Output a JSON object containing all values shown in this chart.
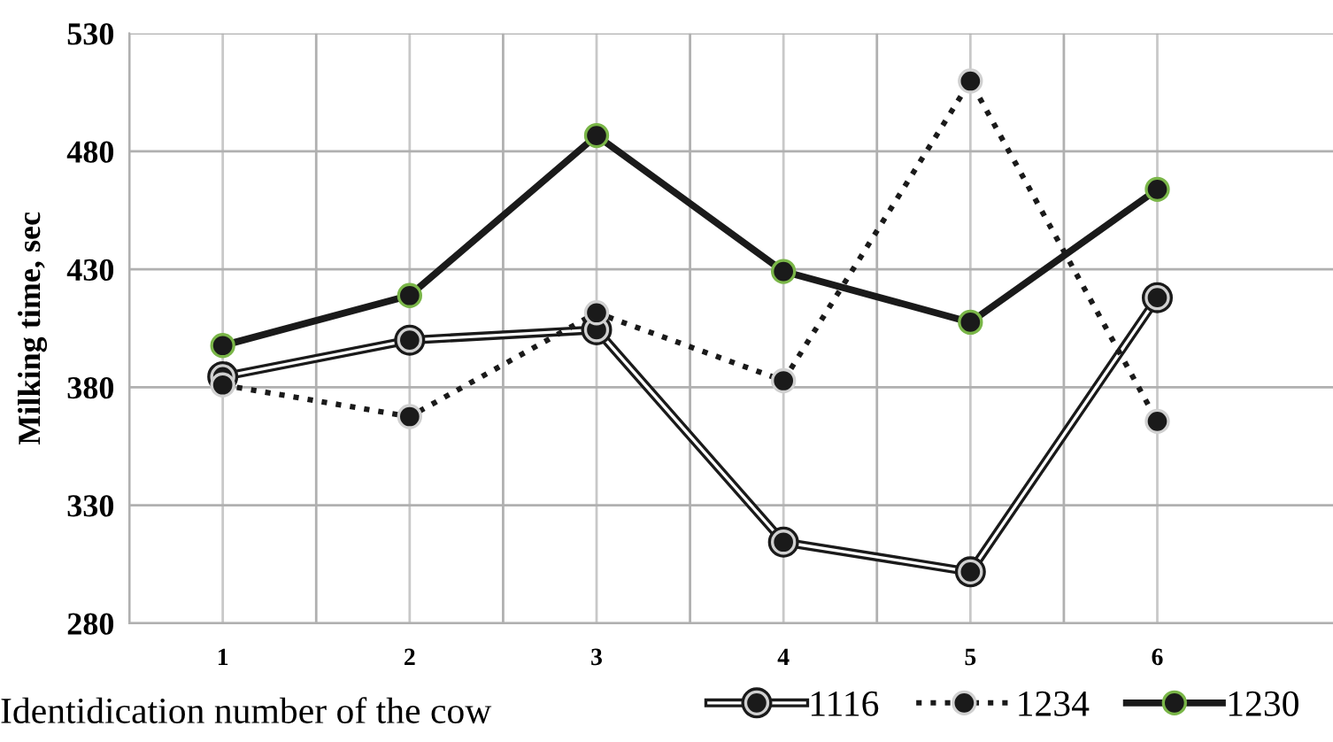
{
  "chart_data": {
    "type": "line",
    "xlabel": "Identidication number of the cow",
    "ylabel": "Milking time, sec",
    "categories": [
      "1",
      "2",
      "3",
      "4",
      "5",
      "6"
    ],
    "series": [
      {
        "name": "1116",
        "color": "#1a1a1a",
        "line_style": "solid",
        "values": [
          384.5,
          400,
          404.4,
          314.4,
          301.8,
          418
        ]
      },
      {
        "name": "1234",
        "color": "#1a1a1a",
        "line_style": "dotted",
        "values": [
          381,
          367.6,
          411.6,
          382.8,
          509.8,
          365.6
        ]
      },
      {
        "name": "1230",
        "color": "#1a1a1a",
        "line_style": "solid",
        "values": [
          397.7,
          418.9,
          486.7,
          429.1,
          407.6,
          463.9
        ]
      }
    ],
    "ylim": [
      280,
      530
    ],
    "yticks": [
      280,
      330,
      380,
      430,
      480,
      530
    ],
    "grid": true,
    "legend": "bottom right",
    "marker": "circle"
  }
}
